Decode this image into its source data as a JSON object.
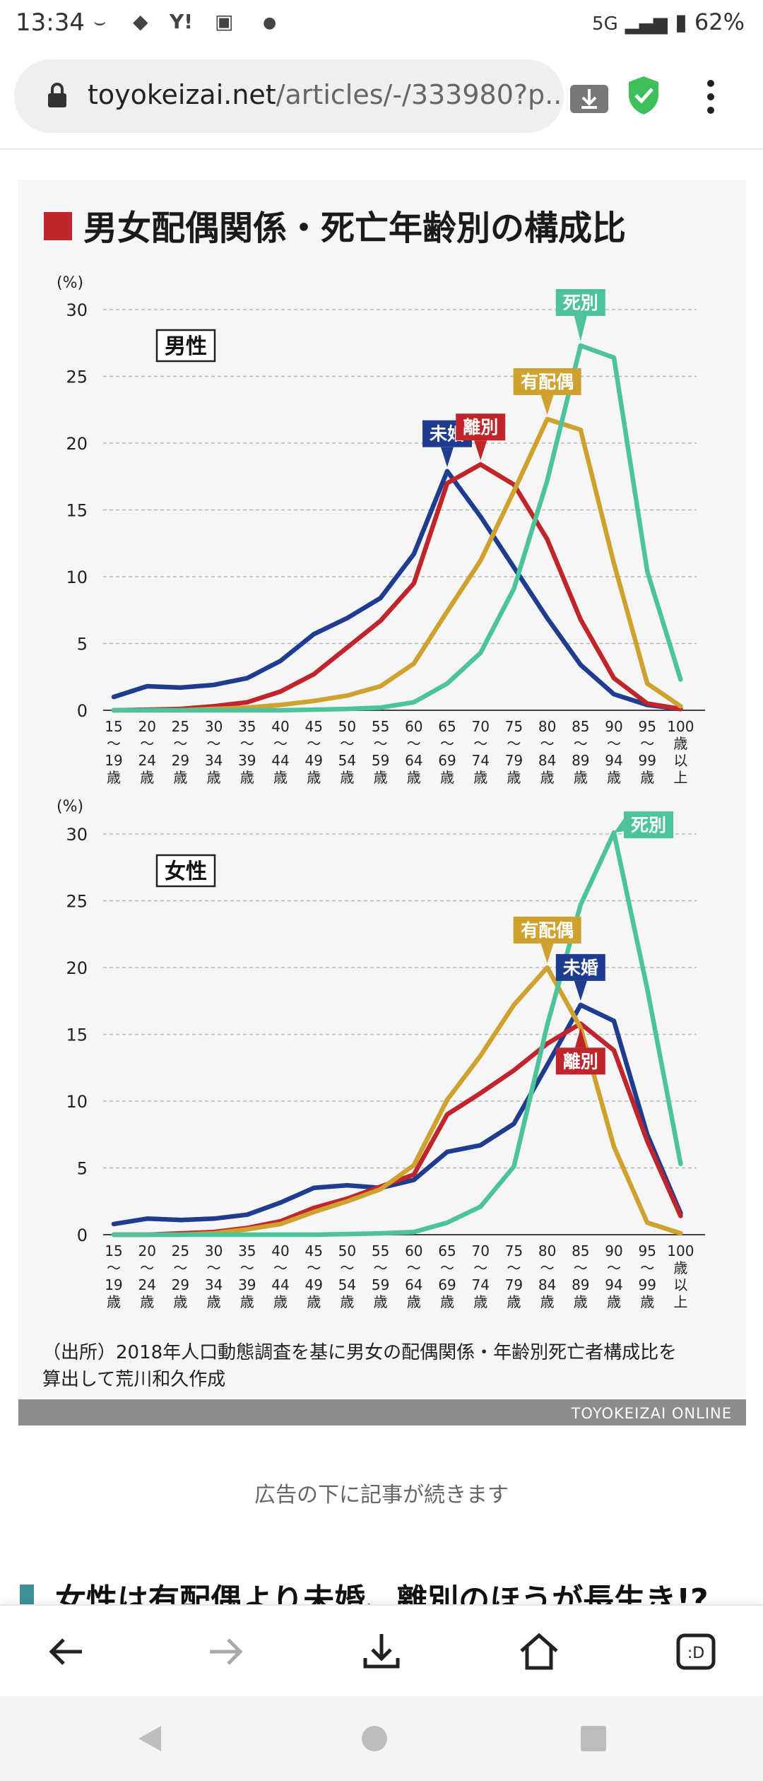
{
  "status_bar": {
    "time": "13:34",
    "network": "5G",
    "battery": "62%"
  },
  "browser": {
    "url_domain": "toyokeizai.net",
    "url_path": "/articles/-/333980?p..."
  },
  "figure": {
    "title": "男女配偶関係・死亡年齢別の構成比",
    "source_line1": "（出所）2018年人口動態調査を基に男女の配偶関係・年齢別死亡者構成比を",
    "source_line2": "算出して荒川和久作成",
    "credit": "TOYOKEIZAI ONLINE"
  },
  "article": {
    "ad_note": "広告の下に記事が続きます",
    "next_heading": "女性は有配偶より未婚、離別のほうが長生き!?"
  },
  "colors": {
    "mikon": "#1f3d8f",
    "haigusha": "#cfa12e",
    "rikon": "#c0252b",
    "shibetsu": "#4cc39b",
    "title_mark": "#c0262b"
  },
  "chart_data": [
    {
      "type": "line",
      "title": "男性",
      "ylabel": "(%)",
      "ylim": [
        0,
        30
      ],
      "yticks": [
        "0",
        "5",
        "10",
        "15",
        "20",
        "25",
        "30"
      ],
      "x_age_groups": [
        [
          "15",
          "〜",
          "19",
          "歳"
        ],
        [
          "20",
          "〜",
          "24",
          "歳"
        ],
        [
          "25",
          "〜",
          "29",
          "歳"
        ],
        [
          "30",
          "〜",
          "34",
          "歳"
        ],
        [
          "35",
          "〜",
          "39",
          "歳"
        ],
        [
          "40",
          "〜",
          "44",
          "歳"
        ],
        [
          "45",
          "〜",
          "49",
          "歳"
        ],
        [
          "50",
          "〜",
          "54",
          "歳"
        ],
        [
          "55",
          "〜",
          "59",
          "歳"
        ],
        [
          "60",
          "〜",
          "64",
          "歳"
        ],
        [
          "65",
          "〜",
          "69",
          "歳"
        ],
        [
          "70",
          "〜",
          "74",
          "歳"
        ],
        [
          "75",
          "〜",
          "79",
          "歳"
        ],
        [
          "80",
          "〜",
          "84",
          "歳"
        ],
        [
          "85",
          "〜",
          "89",
          "歳"
        ],
        [
          "90",
          "〜",
          "94",
          "歳"
        ],
        [
          "95",
          "〜",
          "99",
          "歳"
        ],
        [
          "100",
          "歳",
          "以",
          "上"
        ]
      ],
      "grid": true,
      "series": [
        {
          "name": "未婚",
          "color": "#1f3d8f",
          "values": [
            1.0,
            1.8,
            1.7,
            1.9,
            2.4,
            3.7,
            5.7,
            6.9,
            8.4,
            11.7,
            17.9,
            14.5,
            10.7,
            6.9,
            3.4,
            1.2,
            0.4,
            0.1
          ],
          "label_index": 10
        },
        {
          "name": "離別",
          "color": "#c0252b",
          "values": [
            0.0,
            0.05,
            0.1,
            0.3,
            0.6,
            1.4,
            2.7,
            4.7,
            6.7,
            9.5,
            17.0,
            18.4,
            16.9,
            12.8,
            6.8,
            2.4,
            0.5,
            0.1
          ],
          "label_index": 11
        },
        {
          "name": "有配偶",
          "color": "#cfa12e",
          "values": [
            0.0,
            0.0,
            0.0,
            0.1,
            0.2,
            0.4,
            0.7,
            1.1,
            1.8,
            3.5,
            7.4,
            11.2,
            16.4,
            21.8,
            21.0,
            11.0,
            2.0,
            0.3
          ],
          "label_index": 13
        },
        {
          "name": "死別",
          "color": "#4cc39b",
          "values": [
            0.0,
            0.0,
            0.0,
            0.0,
            0.0,
            0.0,
            0.05,
            0.1,
            0.2,
            0.6,
            2.0,
            4.3,
            9.1,
            17.2,
            27.3,
            26.4,
            10.4,
            2.3
          ],
          "label_index": 14
        }
      ],
      "panel_label": "男性"
    },
    {
      "type": "line",
      "title": "女性",
      "ylabel": "(%)",
      "ylim": [
        0,
        30
      ],
      "yticks": [
        "0",
        "5",
        "10",
        "15",
        "20",
        "25",
        "30"
      ],
      "grid": true,
      "series": [
        {
          "name": "未婚",
          "color": "#1f3d8f",
          "values": [
            0.8,
            1.2,
            1.1,
            1.2,
            1.5,
            2.4,
            3.5,
            3.7,
            3.5,
            4.1,
            6.2,
            6.7,
            8.3,
            12.7,
            17.2,
            16.0,
            7.5,
            1.6
          ],
          "label_index": 14
        },
        {
          "name": "離別",
          "color": "#c0252b",
          "values": [
            0.0,
            0.0,
            0.1,
            0.2,
            0.5,
            1.0,
            2.0,
            2.7,
            3.6,
            4.5,
            9.0,
            10.6,
            12.3,
            14.3,
            15.8,
            13.8,
            7.0,
            1.4
          ],
          "label_index": 14
        },
        {
          "name": "有配偶",
          "color": "#cfa12e",
          "values": [
            0.0,
            0.0,
            0.0,
            0.1,
            0.4,
            0.8,
            1.7,
            2.5,
            3.4,
            5.2,
            10.1,
            13.4,
            17.2,
            20.0,
            15.5,
            6.6,
            0.9,
            0.1
          ],
          "label_index": 13
        },
        {
          "name": "死別",
          "color": "#4cc39b",
          "values": [
            0.0,
            0.0,
            0.0,
            0.0,
            0.0,
            0.0,
            0.0,
            0.05,
            0.1,
            0.2,
            0.9,
            2.1,
            5.1,
            15.7,
            24.7,
            30.1,
            18.4,
            5.3
          ],
          "label_index": 15
        }
      ],
      "panel_label": "女性"
    }
  ]
}
